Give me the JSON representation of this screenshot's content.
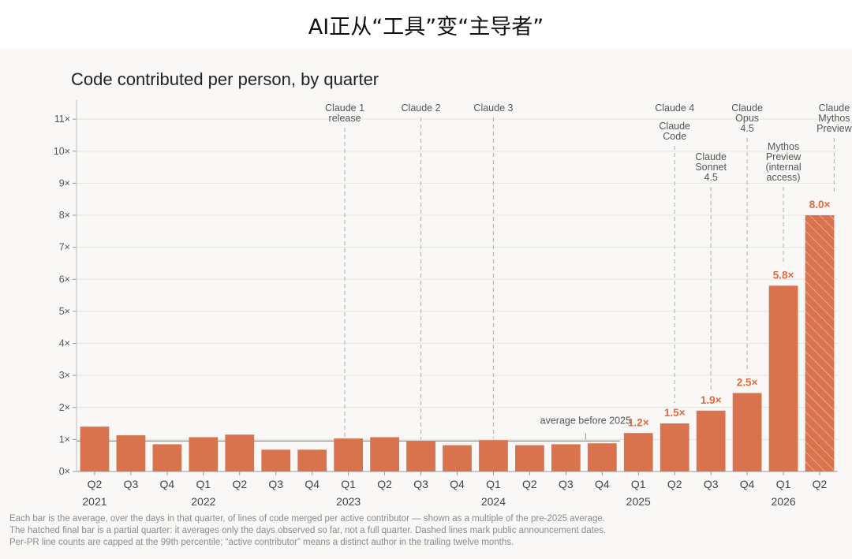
{
  "page_title": "AI正从“工具”变“主导者”",
  "chart_data": {
    "type": "bar",
    "title": "Code contributed per person, by quarter",
    "categories": [
      "Q2",
      "Q3",
      "Q4",
      "Q1",
      "Q2",
      "Q3",
      "Q4",
      "Q1",
      "Q2",
      "Q3",
      "Q4",
      "Q1",
      "Q2",
      "Q3",
      "Q4",
      "Q1",
      "Q2",
      "Q3",
      "Q4",
      "Q1",
      "Q2"
    ],
    "years": [
      {
        "label": "2021",
        "at_index": 0
      },
      {
        "label": "2022",
        "at_index": 3
      },
      {
        "label": "2023",
        "at_index": 7
      },
      {
        "label": "2024",
        "at_index": 11
      },
      {
        "label": "2025",
        "at_index": 15
      },
      {
        "label": "2026",
        "at_index": 19
      }
    ],
    "values": [
      1.4,
      1.13,
      0.85,
      1.07,
      1.15,
      0.68,
      0.68,
      1.03,
      1.07,
      0.95,
      0.82,
      0.98,
      0.82,
      0.85,
      0.88,
      1.2,
      1.5,
      1.9,
      2.45,
      5.8,
      8.0
    ],
    "value_labels": [
      {
        "index": 15,
        "text": "1.2×"
      },
      {
        "index": 16,
        "text": "1.5×"
      },
      {
        "index": 17,
        "text": "1.9×"
      },
      {
        "index": 18,
        "text": "2.5×"
      },
      {
        "index": 19,
        "text": "5.8×"
      },
      {
        "index": 20,
        "text": "8.0×"
      }
    ],
    "hatched_index": 20,
    "y_ticks": [
      {
        "value": 0,
        "label": "0×"
      },
      {
        "value": 1,
        "label": "1×"
      },
      {
        "value": 2,
        "label": "2×"
      },
      {
        "value": 3,
        "label": "3×"
      },
      {
        "value": 4,
        "label": "4×"
      },
      {
        "value": 5,
        "label": "5×"
      },
      {
        "value": 6,
        "label": "6×"
      },
      {
        "value": 7,
        "label": "7×"
      },
      {
        "value": 8,
        "label": "8×"
      },
      {
        "value": 9,
        "label": "9×"
      },
      {
        "value": 10,
        "label": "10×"
      },
      {
        "value": 11,
        "label": "11×"
      }
    ],
    "ylim": [
      0,
      11.2
    ],
    "reference_line": {
      "value": 0.95,
      "label": "average before 2025"
    },
    "annotations": [
      {
        "index": 7,
        "lines": [
          "Claude 1",
          "release"
        ],
        "offset": -0.1
      },
      {
        "index": 9,
        "lines": [
          "Claude 2"
        ],
        "offset": 0
      },
      {
        "index": 11,
        "lines": [
          "Claude 3"
        ],
        "offset": 0
      },
      {
        "index": 16,
        "lines": [
          "Claude 4"
        ],
        "offset": 0,
        "line": false
      },
      {
        "index": 16,
        "lines": [
          "Claude",
          "Code"
        ],
        "offset": 0
      },
      {
        "index": 17,
        "lines": [
          "Claude",
          "Sonnet",
          "4.5"
        ],
        "offset": 0
      },
      {
        "index": 18,
        "lines": [
          "Claude",
          "Opus",
          "4.5"
        ],
        "offset": 0
      },
      {
        "index": 19,
        "lines": [
          "Mythos",
          "Preview",
          "(internal",
          "access)"
        ],
        "offset": 0
      },
      {
        "index": 20,
        "lines": [
          "Claude",
          "Mythos",
          "Preview"
        ],
        "offset": 0.4
      }
    ],
    "bar_color": "#d9734e",
    "label_color": "#e06a3f",
    "grid": true
  },
  "footnotes": [
    "Each bar is the average, over the days in that quarter, of lines of code merged per active contributor — shown as a multiple of the pre-2025 average.",
    "The hatched final bar is a partial quarter: it averages only the days observed so far, not a full quarter. Dashed lines mark public announcement dates.",
    "Per-PR line counts are capped at the 99th percentile; “active contributor” means a distinct author in the trailing twelve months."
  ]
}
